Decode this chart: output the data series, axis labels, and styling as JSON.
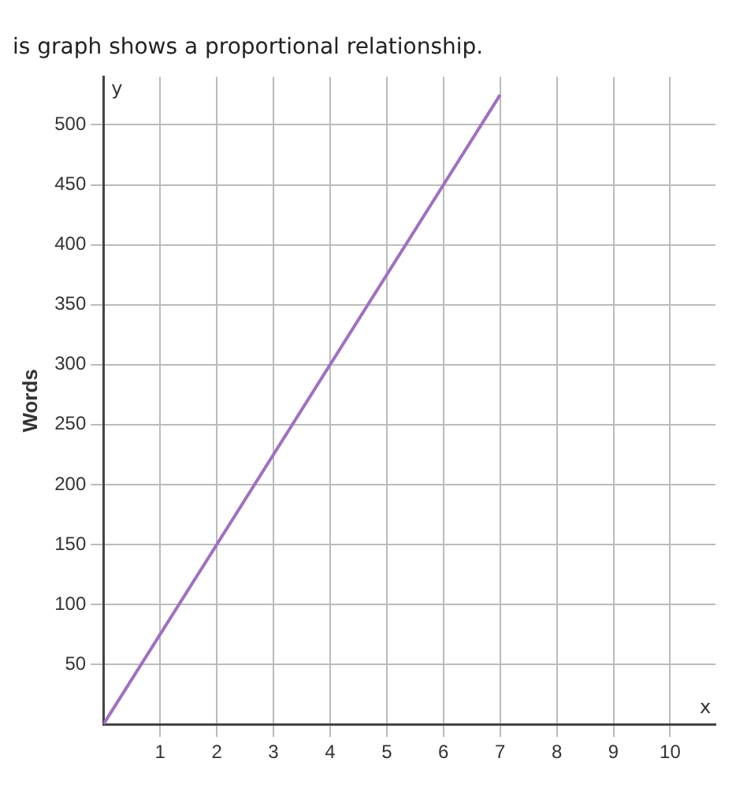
{
  "chart_data": {
    "type": "line",
    "title": "is graph shows a proportional relationship.",
    "xlabel": "x",
    "ylabel": "Words",
    "annotations": [
      "y"
    ],
    "series": [
      {
        "color": "#a070c0",
        "x": [
          0,
          7
        ],
        "values": [
          0,
          525
        ]
      }
    ],
    "xlim": [
      0,
      10.8
    ],
    "xticks": [
      1,
      2,
      3,
      4,
      5,
      6,
      7,
      8,
      9,
      10
    ],
    "ylim": [
      0,
      540
    ],
    "yticks": [
      50,
      100,
      150,
      200,
      250,
      300,
      350,
      400,
      450,
      500
    ],
    "grid": true,
    "legend": false,
    "marker": "none",
    "line_style": "solid"
  }
}
